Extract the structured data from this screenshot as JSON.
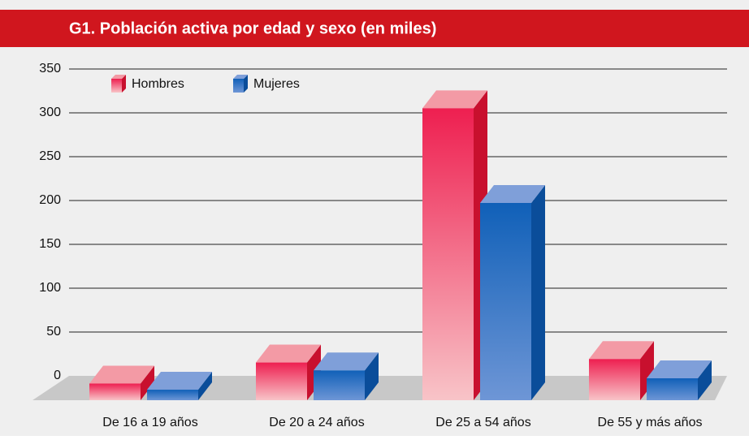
{
  "chart_data": {
    "type": "bar3d",
    "title": "G1. Población activa por edad y sexo (en miles)",
    "categories": [
      "De 16 a 19 años",
      "De 20 a 24 años",
      "De 25 a 54 años",
      "De 55 y más años"
    ],
    "series": [
      {
        "name": "Hombres",
        "color": "#e8435f",
        "values": [
          19,
          43,
          333,
          47
        ]
      },
      {
        "name": "Mujeres",
        "color": "#2f6fbf",
        "values": [
          12,
          34,
          225,
          25
        ]
      }
    ],
    "ylim": [
      0,
      350
    ],
    "yticks": [
      0,
      50,
      100,
      150,
      200,
      250,
      300,
      350
    ],
    "grid": true
  }
}
